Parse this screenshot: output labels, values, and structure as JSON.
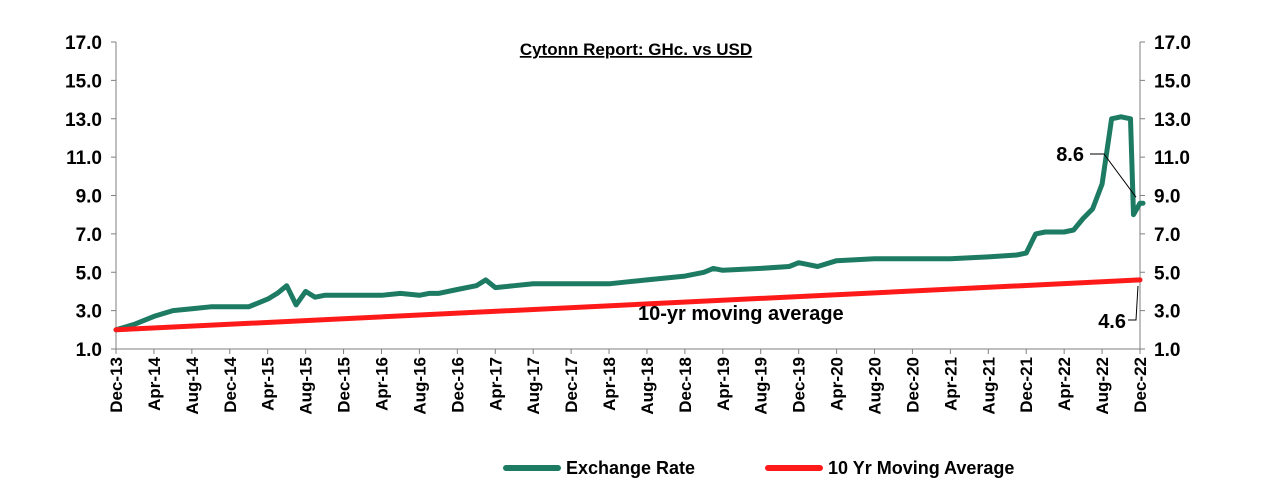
{
  "chart_data": {
    "type": "line",
    "title": "Cytonn Report: GHc. vs USD",
    "xlabel": "",
    "ylabel": "",
    "ylim": [
      1.0,
      17.0
    ],
    "y_ticks": [
      "1.0",
      "3.0",
      "5.0",
      "7.0",
      "9.0",
      "11.0",
      "13.0",
      "15.0",
      "17.0"
    ],
    "y2_ticks": [
      "1.0",
      "3.0",
      "5.0",
      "7.0",
      "9.0",
      "11.0",
      "13.0",
      "15.0",
      "17.0"
    ],
    "x_tick_labels": [
      "Dec-13",
      "Apr-14",
      "Aug-14",
      "Dec-14",
      "Apr-15",
      "Aug-15",
      "Dec-15",
      "Apr-16",
      "Aug-16",
      "Dec-16",
      "Apr-17",
      "Aug-17",
      "Dec-17",
      "Apr-18",
      "Aug-18",
      "Dec-18",
      "Apr-19",
      "Aug-19",
      "Dec-19",
      "Apr-20",
      "Aug-20",
      "Dec-20",
      "Apr-21",
      "Aug-21",
      "Dec-21",
      "Apr-22",
      "Aug-22",
      "Dec-22"
    ],
    "series": [
      {
        "name": "Exchange Rate",
        "color": "#1E7B63",
        "x": [
          "Dec-13",
          "Feb-14",
          "Apr-14",
          "Jun-14",
          "Aug-14",
          "Oct-14",
          "Dec-14",
          "Feb-15",
          "Apr-15",
          "May-15",
          "Jun-15",
          "Jul-15",
          "Aug-15",
          "Sep-15",
          "Oct-15",
          "Dec-15",
          "Feb-16",
          "Apr-16",
          "Jun-16",
          "Aug-16",
          "Sep-16",
          "Oct-16",
          "Dec-16",
          "Feb-17",
          "Mar-17",
          "Apr-17",
          "Jun-17",
          "Aug-17",
          "Dec-17",
          "Apr-18",
          "Jun-18",
          "Aug-18",
          "Dec-18",
          "Feb-19",
          "Mar-19",
          "Apr-19",
          "Aug-19",
          "Nov-19",
          "Dec-19",
          "Jan-20",
          "Feb-20",
          "Apr-20",
          "Aug-20",
          "Dec-20",
          "Apr-21",
          "Aug-21",
          "Nov-21",
          "Dec-21",
          "Jan-22",
          "Feb-22",
          "Mar-22",
          "Apr-22",
          "May-22",
          "Jun-22",
          "Jul-22",
          "Aug-22",
          "Sep-22",
          "Oct-22",
          "Nov-22",
          "Nov-22",
          "Dec-22",
          "Dec-22"
        ],
        "values": [
          2.0,
          2.3,
          2.7,
          3.0,
          3.1,
          3.2,
          3.2,
          3.2,
          3.6,
          3.9,
          4.3,
          3.3,
          4.0,
          3.7,
          3.8,
          3.8,
          3.8,
          3.8,
          3.9,
          3.8,
          3.9,
          3.9,
          4.1,
          4.3,
          4.6,
          4.2,
          4.3,
          4.4,
          4.4,
          4.4,
          4.5,
          4.6,
          4.8,
          5.0,
          5.2,
          5.1,
          5.2,
          5.3,
          5.5,
          5.4,
          5.3,
          5.6,
          5.7,
          5.7,
          5.7,
          5.8,
          5.9,
          6.0,
          7.0,
          7.1,
          7.1,
          7.1,
          7.2,
          7.8,
          8.3,
          9.6,
          13.0,
          13.1,
          13.0,
          8.0,
          8.6,
          8.6
        ]
      },
      {
        "name": "10 Yr Moving Average",
        "color": "#FF1A1A",
        "x": [
          "Dec-13",
          "Dec-22"
        ],
        "values": [
          2.0,
          4.6
        ]
      }
    ],
    "annotations": [
      {
        "text": "8.6",
        "series": "Exchange Rate",
        "x": "Dec-22",
        "y": 8.6
      },
      {
        "text": "4.6",
        "series": "10 Yr Moving Average",
        "x": "Dec-22",
        "y": 4.6
      },
      {
        "text": "10-yr moving average",
        "series": "10 Yr Moving Average"
      }
    ],
    "legend": {
      "position": "bottom",
      "items": [
        "Exchange Rate",
        "10 Yr Moving Average"
      ]
    },
    "grid": false
  }
}
